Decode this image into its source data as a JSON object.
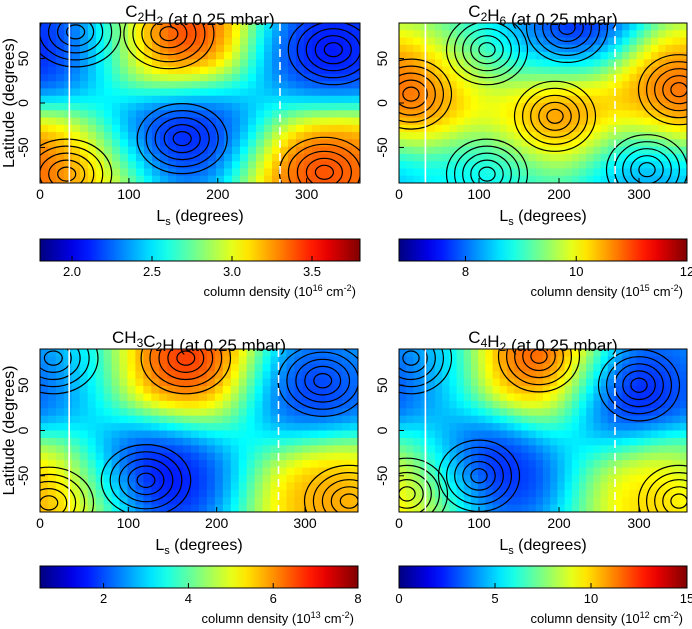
{
  "chart_data": [
    {
      "type": "heatmap",
      "title_parts": [
        {
          "t": "C"
        },
        {
          "t": "2",
          "sub": true
        },
        {
          "t": "H"
        },
        {
          "t": "2",
          "sub": true
        },
        {
          "t": " (at 0.25 mbar)"
        }
      ],
      "xlabel": "L",
      "xlabel_sub": "s",
      "xlabel_rest": " (degrees)",
      "ylabel": "Latitude (degrees)",
      "xlim": [
        0,
        360
      ],
      "ylim": [
        -90,
        90
      ],
      "xticks": [
        "0",
        "100",
        "200",
        "300"
      ],
      "yticks": [
        "50",
        "0",
        "-50"
      ],
      "vlines": [
        {
          "x": 33,
          "style": "solid"
        },
        {
          "x": 270,
          "style": "dashed"
        }
      ],
      "colorbar": {
        "min": 1.8,
        "max": 3.8,
        "ticks": [
          "2.0",
          "2.5",
          "3.0",
          "3.5"
        ],
        "label_main": "column density (10",
        "label_exp1": "16",
        "label_mid": " cm",
        "label_exp2": "-2",
        "label_end": ")"
      },
      "features": [
        {
          "x": 145,
          "y": 78,
          "value": 3.8
        },
        {
          "x": 320,
          "y": -78,
          "value": 3.7
        },
        {
          "x": 30,
          "y": -80,
          "value": 3.3
        },
        {
          "x": 40,
          "y": 80,
          "value": 2.1
        },
        {
          "x": 160,
          "y": -40,
          "value": 1.9
        },
        {
          "x": 330,
          "y": 60,
          "value": 1.9
        }
      ]
    },
    {
      "type": "heatmap",
      "title_parts": [
        {
          "t": "C"
        },
        {
          "t": "2",
          "sub": true
        },
        {
          "t": "H"
        },
        {
          "t": "6",
          "sub": true
        },
        {
          "t": " (at 0.25 mbar)"
        }
      ],
      "xlabel": "L",
      "xlabel_sub": "s",
      "xlabel_rest": " (degrees)",
      "ylabel": "",
      "xlim": [
        0,
        360
      ],
      "ylim": [
        -90,
        90
      ],
      "xticks": [
        "0",
        "100",
        "200",
        "300"
      ],
      "yticks": [
        "50",
        "0",
        "-50"
      ],
      "vlines": [
        {
          "x": 33,
          "style": "solid"
        },
        {
          "x": 270,
          "style": "dashed"
        }
      ],
      "colorbar": {
        "min": 6.8,
        "max": 12,
        "ticks": [
          "8",
          "10",
          "12"
        ],
        "label_main": "column density (10",
        "label_exp1": "15",
        "label_mid": " cm",
        "label_exp2": "-2",
        "label_end": ")"
      },
      "features": [
        {
          "x": 15,
          "y": 10,
          "value": 11.4
        },
        {
          "x": 195,
          "y": -15,
          "value": 11.4
        },
        {
          "x": 350,
          "y": 15,
          "value": 11.0
        },
        {
          "x": 110,
          "y": 60,
          "value": 9.0
        },
        {
          "x": 210,
          "y": 85,
          "value": 7.0
        },
        {
          "x": 110,
          "y": -80,
          "value": 8.6
        },
        {
          "x": 310,
          "y": -75,
          "value": 8.0
        }
      ]
    },
    {
      "type": "heatmap",
      "title_parts": [
        {
          "t": "CH"
        },
        {
          "t": "3",
          "sub": true
        },
        {
          "t": "C"
        },
        {
          "t": "2",
          "sub": true
        },
        {
          "t": "H (at 0.25 mbar)"
        }
      ],
      "xlabel": "L",
      "xlabel_sub": "s",
      "xlabel_rest": " (degrees)",
      "ylabel": "Latitude (degrees)",
      "xlim": [
        0,
        360
      ],
      "ylim": [
        -90,
        90
      ],
      "xticks": [
        "0",
        "100",
        "200",
        "300"
      ],
      "yticks": [
        "50",
        "0",
        "-50"
      ],
      "vlines": [
        {
          "x": 33,
          "style": "solid"
        },
        {
          "x": 270,
          "style": "dashed"
        }
      ],
      "colorbar": {
        "min": 0.5,
        "max": 8,
        "ticks": [
          "2",
          "4",
          "6",
          "8"
        ],
        "label_main": "column density (10",
        "label_exp1": "13",
        "label_mid": " cm",
        "label_exp2": "-2",
        "label_end": ")"
      },
      "features": [
        {
          "x": 165,
          "y": 80,
          "value": 7.8
        },
        {
          "x": 350,
          "y": -78,
          "value": 7.0
        },
        {
          "x": 10,
          "y": -80,
          "value": 5.5
        },
        {
          "x": 15,
          "y": 80,
          "value": 3.0
        },
        {
          "x": 120,
          "y": -55,
          "value": 0.6
        },
        {
          "x": 320,
          "y": 55,
          "value": 0.8
        }
      ]
    },
    {
      "type": "heatmap",
      "title_parts": [
        {
          "t": "C"
        },
        {
          "t": "4",
          "sub": true
        },
        {
          "t": "H"
        },
        {
          "t": "2",
          "sub": true
        },
        {
          "t": " (at 0.25 mbar)"
        }
      ],
      "xlabel": "L",
      "xlabel_sub": "s",
      "xlabel_rest": " (degrees)",
      "ylabel": "",
      "xlim": [
        0,
        360
      ],
      "ylim": [
        -90,
        90
      ],
      "xticks": [
        "0",
        "100",
        "200",
        "300"
      ],
      "yticks": [
        "50",
        "0",
        "-50"
      ],
      "vlines": [
        {
          "x": 33,
          "style": "solid"
        },
        {
          "x": 270,
          "style": "dashed"
        }
      ],
      "colorbar": {
        "min": 0,
        "max": 15,
        "ticks": [
          "0",
          "5",
          "10",
          "15"
        ],
        "label_main": "column density (10",
        "label_exp1": "12",
        "label_mid": " cm",
        "label_exp2": "-2",
        "label_end": ")"
      },
      "features": [
        {
          "x": 175,
          "y": 82,
          "value": 14.0
        },
        {
          "x": 350,
          "y": -78,
          "value": 13.0
        },
        {
          "x": 10,
          "y": -70,
          "value": 8.0
        },
        {
          "x": 15,
          "y": 80,
          "value": 4.0
        },
        {
          "x": 100,
          "y": -50,
          "value": 0.3
        },
        {
          "x": 300,
          "y": 50,
          "value": 0.3
        }
      ]
    }
  ]
}
